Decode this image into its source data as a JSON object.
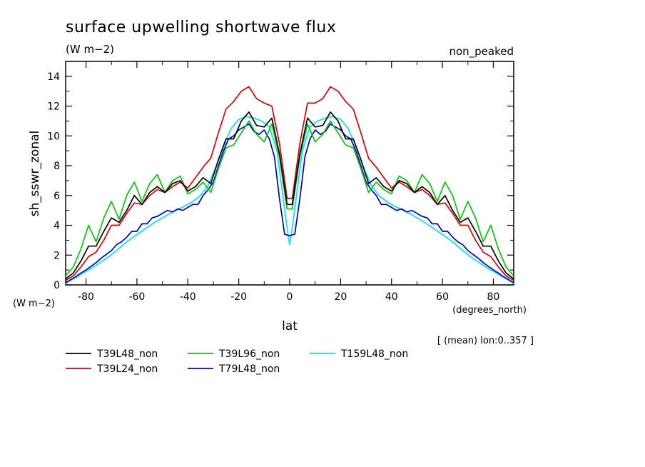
{
  "chart_data": {
    "type": "line",
    "title": "surface upwelling shortwave flux",
    "subtitle": "(W m−2)",
    "tag": "non_peaked",
    "xlabel": "lat",
    "x_units": "(degrees_north)",
    "ylabel": "sh_sswr_zonal",
    "y_units": "(W m−2)",
    "note": "[ (mean) lon:0..357 ]",
    "xlim": [
      -88,
      88
    ],
    "ylim": [
      0,
      15
    ],
    "xticks": [
      -80,
      -60,
      -40,
      -20,
      0,
      20,
      40,
      60,
      80
    ],
    "yticks": [
      0,
      2,
      4,
      6,
      8,
      10,
      12,
      14
    ],
    "series": [
      {
        "name": "T39L48_non",
        "color": "#000000",
        "x": [
          -88,
          -85,
          -82,
          -79,
          -76,
          -73,
          -70,
          -67,
          -64,
          -61,
          -58,
          -55,
          -52,
          -49,
          -46,
          -43,
          -40,
          -37,
          -34,
          -31,
          -28,
          -25,
          -22,
          -19,
          -16,
          -13,
          -10,
          -7,
          -4,
          -1,
          1,
          4,
          7,
          10,
          13,
          16,
          19,
          22,
          25,
          28,
          31,
          34,
          37,
          40,
          43,
          46,
          49,
          52,
          55,
          58,
          61,
          64,
          67,
          70,
          73,
          76,
          79,
          82,
          85,
          88
        ],
        "y": [
          0.4,
          0.8,
          1.6,
          2.6,
          2.6,
          3.6,
          4.5,
          4.2,
          5.0,
          6.0,
          5.4,
          6.2,
          6.6,
          6.2,
          6.8,
          7.0,
          6.3,
          6.6,
          7.2,
          6.8,
          8.4,
          9.8,
          9.8,
          11.0,
          11.6,
          10.7,
          10.6,
          11.2,
          8.8,
          5.4,
          5.4,
          8.8,
          11.2,
          10.6,
          10.7,
          11.6,
          11.0,
          9.8,
          9.8,
          8.4,
          6.8,
          7.2,
          6.6,
          6.3,
          7.0,
          6.8,
          6.2,
          6.6,
          6.2,
          5.4,
          6.0,
          5.0,
          4.2,
          4.5,
          3.6,
          2.6,
          2.6,
          1.6,
          0.8,
          0.4
        ]
      },
      {
        "name": "T39L24_non",
        "color": "#e00000",
        "x": [
          -88,
          -85,
          -82,
          -79,
          -76,
          -73,
          -70,
          -67,
          -64,
          -61,
          -58,
          -55,
          -52,
          -49,
          -46,
          -43,
          -40,
          -37,
          -34,
          -31,
          -28,
          -25,
          -22,
          -19,
          -16,
          -13,
          -10,
          -7,
          -4,
          -1,
          1,
          4,
          7,
          10,
          13,
          16,
          19,
          22,
          25,
          28,
          31,
          34,
          37,
          40,
          43,
          46,
          49,
          52,
          55,
          58,
          61,
          64,
          67,
          70,
          73,
          76,
          79,
          82,
          85,
          88
        ],
        "y": [
          0.3,
          0.6,
          1.2,
          1.9,
          2.2,
          3.0,
          4.0,
          4.0,
          4.8,
          5.5,
          5.4,
          6.0,
          6.4,
          6.2,
          6.6,
          6.9,
          6.5,
          7.2,
          7.9,
          8.5,
          10.2,
          11.8,
          12.3,
          13.0,
          13.3,
          12.5,
          12.2,
          12.0,
          9.5,
          5.8,
          5.8,
          9.5,
          12.2,
          12.2,
          12.5,
          13.3,
          13.0,
          12.3,
          11.8,
          10.2,
          8.5,
          7.9,
          7.2,
          6.5,
          6.9,
          6.6,
          6.2,
          6.4,
          6.0,
          5.4,
          5.5,
          4.8,
          4.0,
          4.0,
          3.0,
          2.2,
          1.9,
          1.2,
          0.6,
          0.3
        ]
      },
      {
        "name": "T39L96_non",
        "color": "#00cc00",
        "x": [
          -88,
          -85,
          -82,
          -79,
          -76,
          -73,
          -70,
          -67,
          -64,
          -61,
          -58,
          -55,
          -52,
          -49,
          -46,
          -43,
          -40,
          -37,
          -34,
          -31,
          -28,
          -25,
          -22,
          -19,
          -16,
          -13,
          -10,
          -7,
          -4,
          -1,
          1,
          4,
          7,
          10,
          13,
          16,
          19,
          22,
          25,
          28,
          31,
          34,
          37,
          40,
          43,
          46,
          49,
          52,
          55,
          58,
          61,
          64,
          67,
          70,
          73,
          76,
          79,
          82,
          85,
          88
        ],
        "y": [
          0.6,
          1.2,
          2.4,
          4.0,
          2.9,
          4.5,
          5.6,
          4.4,
          6.0,
          6.9,
          5.6,
          6.8,
          7.4,
          6.2,
          7.0,
          7.3,
          6.1,
          6.4,
          6.9,
          6.2,
          7.8,
          9.2,
          9.4,
          10.2,
          11.0,
          10.1,
          9.6,
          10.8,
          8.6,
          5.1,
          5.1,
          8.6,
          10.8,
          9.6,
          10.1,
          11.0,
          10.2,
          9.4,
          9.2,
          7.8,
          6.2,
          6.9,
          6.4,
          6.1,
          7.3,
          7.0,
          6.2,
          7.4,
          6.8,
          5.6,
          6.9,
          6.0,
          4.4,
          5.6,
          4.5,
          2.9,
          4.0,
          2.4,
          1.2,
          0.6
        ]
      },
      {
        "name": "T79L48_non",
        "color": "#0000cc",
        "x": [
          -88,
          -86,
          -84,
          -82,
          -80,
          -78,
          -76,
          -74,
          -72,
          -70,
          -68,
          -66,
          -64,
          -62,
          -60,
          -58,
          -56,
          -54,
          -52,
          -50,
          -48,
          -46,
          -44,
          -42,
          -40,
          -38,
          -36,
          -34,
          -32,
          -30,
          -28,
          -26,
          -24,
          -22,
          -20,
          -18,
          -16,
          -14,
          -12,
          -10,
          -8,
          -6,
          -4,
          -2,
          0,
          2,
          4,
          6,
          8,
          10,
          12,
          14,
          16,
          18,
          20,
          22,
          24,
          26,
          28,
          30,
          32,
          34,
          36,
          38,
          40,
          42,
          44,
          46,
          48,
          50,
          52,
          54,
          56,
          58,
          60,
          62,
          64,
          66,
          68,
          70,
          72,
          74,
          76,
          78,
          80,
          82,
          84,
          86,
          88
        ],
        "y": [
          0.15,
          0.35,
          0.55,
          0.8,
          1.0,
          1.25,
          1.5,
          1.8,
          2.05,
          2.3,
          2.7,
          2.9,
          3.2,
          3.6,
          3.6,
          4.1,
          4.1,
          4.5,
          4.6,
          4.8,
          5.0,
          4.9,
          5.1,
          5.0,
          5.2,
          5.4,
          5.4,
          6.0,
          6.4,
          6.9,
          8.0,
          9.0,
          9.8,
          10.0,
          10.4,
          10.6,
          10.8,
          10.3,
          10.1,
          10.4,
          9.8,
          8.6,
          5.8,
          3.4,
          3.3,
          3.4,
          5.8,
          8.6,
          9.8,
          10.4,
          10.1,
          10.3,
          10.8,
          10.6,
          10.4,
          10.0,
          9.8,
          9.0,
          8.0,
          6.9,
          6.4,
          6.0,
          5.4,
          5.4,
          5.2,
          5.0,
          5.1,
          4.9,
          5.0,
          4.8,
          4.6,
          4.5,
          4.1,
          4.1,
          3.6,
          3.6,
          3.2,
          2.9,
          2.7,
          2.3,
          2.05,
          1.8,
          1.5,
          1.25,
          1.0,
          0.8,
          0.55,
          0.35,
          0.15
        ]
      },
      {
        "name": "T159L48_non",
        "color": "#00e5ee",
        "x": [
          -88,
          -86,
          -83,
          -80,
          -77,
          -74,
          -71,
          -68,
          -65,
          -62,
          -59,
          -56,
          -53,
          -50,
          -47,
          -44,
          -41,
          -38,
          -35,
          -32,
          -29,
          -26,
          -23,
          -20,
          -17,
          -14,
          -11,
          -8,
          -5,
          -3,
          -1,
          0,
          1,
          3,
          5,
          8,
          11,
          14,
          17,
          20,
          23,
          26,
          29,
          32,
          35,
          38,
          41,
          44,
          47,
          50,
          53,
          56,
          59,
          62,
          65,
          68,
          71,
          74,
          77,
          80,
          83,
          86,
          88
        ],
        "y": [
          0.1,
          0.3,
          0.6,
          0.9,
          1.2,
          1.55,
          1.9,
          2.3,
          2.75,
          3.15,
          3.5,
          3.85,
          4.2,
          4.5,
          4.8,
          5.05,
          5.3,
          5.6,
          6.0,
          6.7,
          7.9,
          9.3,
          10.5,
          11.1,
          11.3,
          11.2,
          11.0,
          10.6,
          9.0,
          6.4,
          3.8,
          2.7,
          3.8,
          6.4,
          9.0,
          10.6,
          11.0,
          11.2,
          11.3,
          11.1,
          10.5,
          9.3,
          7.9,
          6.7,
          6.0,
          5.6,
          5.3,
          5.05,
          4.8,
          4.5,
          4.2,
          3.85,
          3.5,
          3.15,
          2.75,
          2.3,
          1.9,
          1.55,
          1.2,
          0.9,
          0.6,
          0.3,
          0.1
        ]
      }
    ]
  }
}
